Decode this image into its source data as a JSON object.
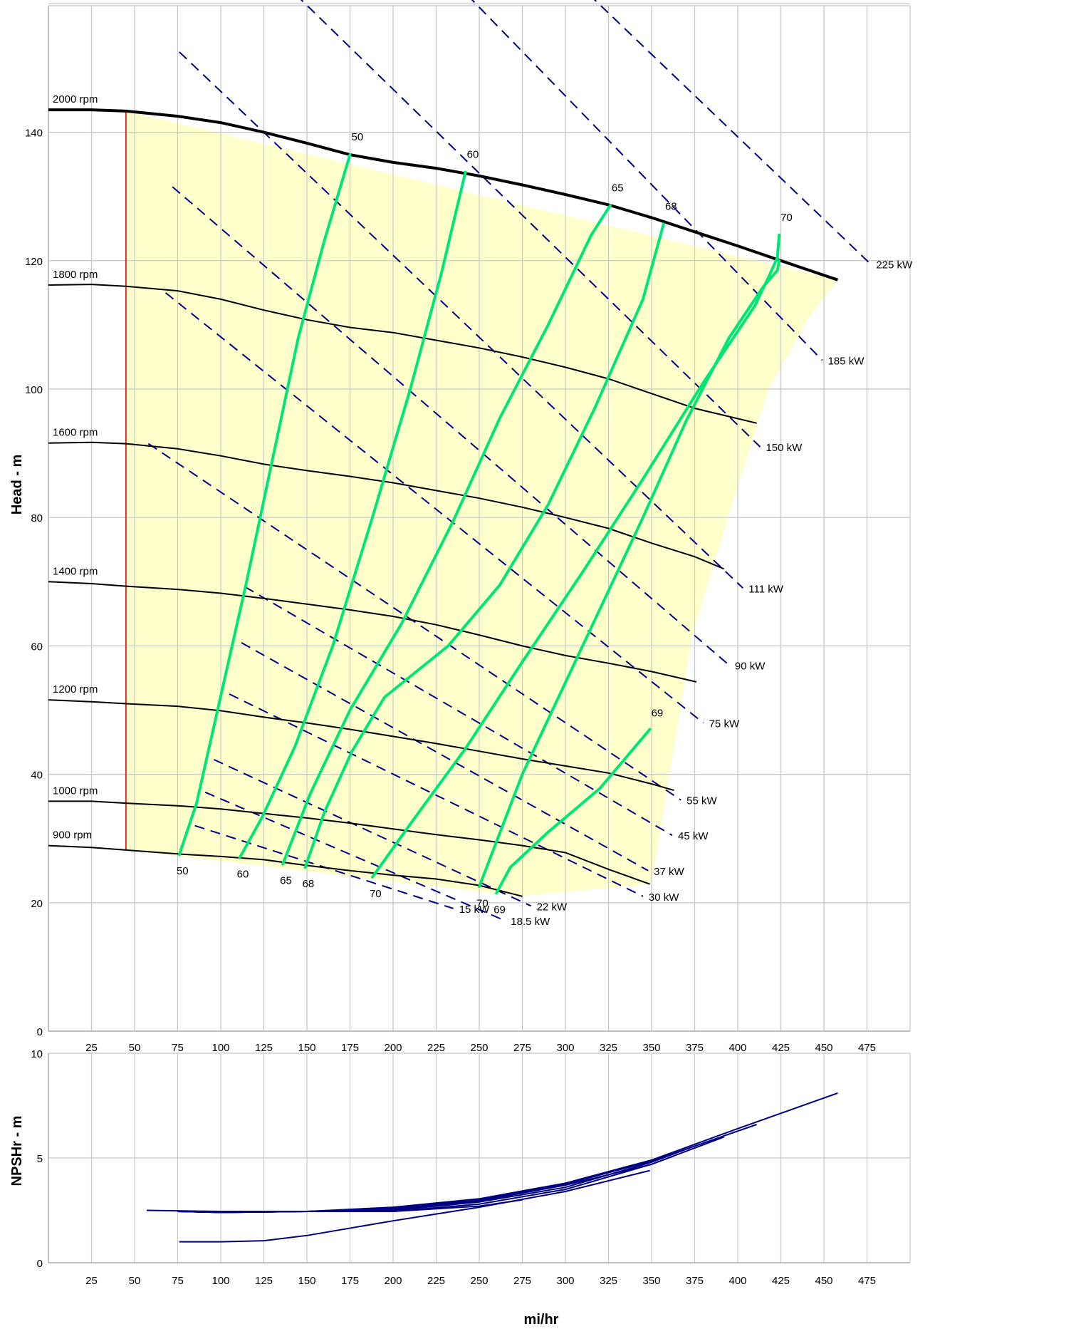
{
  "chart_data": [
    {
      "type": "line",
      "ylabel": "Head - m",
      "xlim": [
        0,
        500
      ],
      "ylim": [
        0,
        160
      ],
      "xticks": [
        25,
        50,
        75,
        100,
        125,
        150,
        175,
        200,
        225,
        250,
        275,
        300,
        325,
        350,
        375,
        400,
        425,
        450,
        475
      ],
      "yticks": [
        0,
        20,
        40,
        60,
        80,
        100,
        120,
        140
      ],
      "grid": true,
      "colors": {
        "speed_curve": "#000000",
        "efficiency": "#00e676",
        "power": "#000080",
        "operating_area": "#ffffcc",
        "min_flow": "#dd2222"
      },
      "speed_curves": [
        {
          "name": "2000 rpm",
          "x": [
            0,
            25,
            45,
            75,
            100,
            125,
            150,
            175,
            200,
            225,
            250,
            275,
            300,
            325,
            350,
            375,
            400,
            425,
            458
          ],
          "y": [
            143.5,
            143.5,
            143.3,
            142.5,
            141.5,
            140.0,
            138.3,
            136.5,
            135.3,
            134.4,
            133.2,
            131.8,
            130.3,
            128.7,
            126.7,
            124.5,
            122.3,
            120.0,
            117.0
          ]
        },
        {
          "name": "1800 rpm",
          "x": [
            0,
            25,
            45,
            75,
            100,
            125,
            150,
            175,
            200,
            225,
            250,
            275,
            300,
            325,
            350,
            375,
            411
          ],
          "y": [
            116.2,
            116.3,
            116.0,
            115.3,
            114.0,
            112.3,
            110.8,
            109.6,
            108.8,
            107.6,
            106.4,
            105.0,
            103.4,
            101.6,
            99.3,
            97.0,
            94.7
          ]
        },
        {
          "name": "1600 rpm",
          "x": [
            0,
            25,
            45,
            75,
            100,
            125,
            150,
            175,
            200,
            225,
            250,
            275,
            300,
            325,
            350,
            375,
            392
          ],
          "y": [
            91.6,
            91.7,
            91.5,
            90.7,
            89.6,
            88.3,
            87.3,
            86.4,
            85.4,
            84.2,
            83.0,
            81.6,
            80.0,
            78.3,
            76.0,
            73.9,
            72.0
          ]
        },
        {
          "name": "1400 rpm",
          "x": [
            0,
            25,
            45,
            75,
            100,
            125,
            150,
            175,
            200,
            225,
            250,
            275,
            300,
            325,
            350,
            376
          ],
          "y": [
            70.0,
            69.7,
            69.3,
            68.8,
            68.2,
            67.4,
            66.5,
            65.6,
            64.6,
            63.3,
            61.7,
            60.0,
            58.5,
            57.3,
            56.0,
            54.4
          ]
        },
        {
          "name": "1200 rpm",
          "x": [
            0,
            25,
            45,
            75,
            100,
            125,
            150,
            175,
            200,
            225,
            250,
            275,
            300,
            325,
            350,
            363
          ],
          "y": [
            51.6,
            51.3,
            51.0,
            50.6,
            49.9,
            48.9,
            48.0,
            47.0,
            45.9,
            44.8,
            43.6,
            42.4,
            41.3,
            40.2,
            38.5,
            37.5
          ]
        },
        {
          "name": "1000 rpm",
          "x": [
            0,
            25,
            45,
            75,
            100,
            125,
            150,
            175,
            200,
            225,
            250,
            275,
            300,
            325,
            349
          ],
          "y": [
            35.8,
            35.8,
            35.5,
            35.1,
            34.6,
            33.9,
            33.2,
            32.4,
            31.5,
            30.6,
            29.8,
            28.9,
            27.8,
            25.2,
            22.9
          ]
        },
        {
          "name": "900 rpm",
          "x": [
            0,
            25,
            45,
            75,
            100,
            125,
            150,
            175,
            200,
            225,
            250,
            275
          ],
          "y": [
            28.9,
            28.6,
            28.2,
            27.6,
            27.2,
            26.7,
            25.8,
            25.0,
            24.3,
            23.7,
            22.7,
            21.0
          ]
        }
      ],
      "efficiency_curves": [
        {
          "name": "50",
          "x": [
            76,
            86,
            99,
            115,
            130,
            145,
            160,
            175
          ],
          "y": [
            27.5,
            35.5,
            51.0,
            70.0,
            89.0,
            108.0,
            123.0,
            136.5
          ]
        },
        {
          "name": "60",
          "x": [
            111,
            124,
            143,
            165,
            188,
            210,
            228,
            242
          ],
          "y": [
            27.0,
            33.3,
            44.3,
            60.0,
            80.0,
            100.0,
            118.0,
            133.8
          ]
        },
        {
          "name": "65",
          "x": [
            136,
            152,
            175,
            205,
            235,
            262,
            290,
            315,
            326
          ],
          "y": [
            26.0,
            37.0,
            50.0,
            63.5,
            79.5,
            95.5,
            110.0,
            124.0,
            128.6
          ]
        },
        {
          "name": "68",
          "x": [
            149,
            160,
            176,
            195,
            232,
            262,
            290,
            317,
            345,
            357
          ],
          "y": [
            25.5,
            34.0,
            43.5,
            52.0,
            60.0,
            69.5,
            82.0,
            97.0,
            114.0,
            125.7
          ]
        },
        {
          "name": "70",
          "x": [
            188,
            212,
            242,
            275,
            310,
            345,
            380,
            410,
            418,
            423,
            424
          ],
          "y": [
            24.0,
            33.0,
            44.0,
            57.5,
            71.5,
            86.0,
            101.0,
            113.0,
            117.5,
            120.5,
            124.0
          ]
        },
        {
          "name": "70",
          "x": [
            250,
            275,
            310,
            345,
            370,
            395,
            415,
            423,
            424
          ],
          "y": [
            22.5,
            40.0,
            60.0,
            80.0,
            95.0,
            108.0,
            116.0,
            118.5,
            120.0
          ]
        },
        {
          "name": "69",
          "x": [
            260,
            268,
            290,
            320,
            349
          ],
          "y": [
            21.5,
            25.5,
            31.0,
            37.8,
            47.0
          ]
        }
      ],
      "power_curves": [
        {
          "name": "15 kW",
          "x": [
            85,
            235
          ],
          "y": [
            32.0,
            19.1
          ]
        },
        {
          "name": "18.5 kW",
          "x": [
            91,
            265
          ],
          "y": [
            37.2,
            17.2
          ]
        },
        {
          "name": "22 kW",
          "x": [
            96,
            280
          ],
          "y": [
            42.3,
            19.5
          ]
        },
        {
          "name": "30 kW",
          "x": [
            105,
            345
          ],
          "y": [
            52.5,
            21.0
          ]
        },
        {
          "name": "37 kW",
          "x": [
            112,
            348
          ],
          "y": [
            60.5,
            25.0
          ]
        },
        {
          "name": "45 kW",
          "x": [
            114,
            362
          ],
          "y": [
            69.2,
            30.5
          ]
        },
        {
          "name": "55 kW",
          "x": [
            58,
            367
          ],
          "y": [
            91.5,
            36.0
          ]
        },
        {
          "name": "75 kW",
          "x": [
            68,
            380
          ],
          "y": [
            115.0,
            48.0
          ]
        },
        {
          "name": "90 kW",
          "x": [
            72,
            395
          ],
          "y": [
            131.5,
            57.0
          ]
        },
        {
          "name": "111 kW",
          "x": [
            76,
            403
          ],
          "y": [
            152.5,
            69.0
          ]
        },
        {
          "name": "150 kW",
          "x": [
            130,
            413
          ],
          "y": [
            165.0,
            91.0
          ]
        },
        {
          "name": "185 kW",
          "x": [
            230,
            449
          ],
          "y": [
            165.0,
            104.5
          ]
        },
        {
          "name": "225 kW",
          "x": [
            300,
            477
          ],
          "y": [
            165.0,
            119.5
          ]
        }
      ],
      "operating_area": {
        "x": [
          45,
          458,
          441,
          418,
          399,
          374,
          350,
          273,
          45
        ],
        "y": [
          143.3,
          117.0,
          111.0,
          100.0,
          84.0,
          62.0,
          22.9,
          21.0,
          28.2
        ]
      },
      "min_flow_x": 45,
      "label_texts": {
        "eff_top": [
          "50",
          "60",
          "65",
          "68",
          "70"
        ],
        "eff_bottom": [
          "50",
          "60",
          "65",
          "68",
          "70",
          "70",
          "69"
        ],
        "eff_69_top": "69"
      }
    },
    {
      "type": "line",
      "ylabel": "NPSHr - m",
      "xlabel": "mi/hr",
      "xlim": [
        0,
        500
      ],
      "ylim": [
        0,
        10
      ],
      "xticks": [
        25,
        50,
        75,
        100,
        125,
        150,
        175,
        200,
        225,
        250,
        275,
        300,
        325,
        350,
        375,
        400,
        425,
        450,
        475
      ],
      "yticks": [
        0,
        5,
        10
      ],
      "grid": true,
      "series": [
        {
          "x": [
            57,
            100,
            150,
            200,
            250,
            300,
            350,
            400,
            458
          ],
          "y": [
            2.5,
            2.45,
            2.45,
            2.65,
            3.05,
            3.8,
            4.9,
            6.4,
            8.1
          ]
        },
        {
          "x": [
            75,
            100,
            150,
            200,
            250,
            300,
            350,
            411
          ],
          "y": [
            2.45,
            2.4,
            2.45,
            2.6,
            3.0,
            3.75,
            4.85,
            6.6
          ]
        },
        {
          "x": [
            75,
            100,
            150,
            200,
            250,
            300,
            350,
            392
          ],
          "y": [
            2.45,
            2.4,
            2.45,
            2.55,
            2.95,
            3.7,
            4.7,
            6.0
          ]
        },
        {
          "x": [
            75,
            100,
            150,
            200,
            250,
            300,
            350,
            376
          ],
          "y": [
            2.45,
            2.4,
            2.45,
            2.5,
            2.9,
            3.6,
            4.8,
            5.6
          ]
        },
        {
          "x": [
            75,
            100,
            150,
            200,
            250,
            300,
            350,
            363
          ],
          "y": [
            2.45,
            2.4,
            2.45,
            2.45,
            2.8,
            3.5,
            4.7,
            5.1
          ]
        },
        {
          "x": [
            75,
            100,
            150,
            200,
            250,
            275
          ],
          "y": [
            2.45,
            2.4,
            2.45,
            2.45,
            2.7,
            3.0
          ]
        },
        {
          "x": [
            76,
            100,
            125,
            150,
            200,
            250,
            300,
            349
          ],
          "y": [
            1.0,
            1.0,
            1.05,
            1.3,
            2.0,
            2.65,
            3.4,
            4.4
          ]
        }
      ]
    }
  ]
}
